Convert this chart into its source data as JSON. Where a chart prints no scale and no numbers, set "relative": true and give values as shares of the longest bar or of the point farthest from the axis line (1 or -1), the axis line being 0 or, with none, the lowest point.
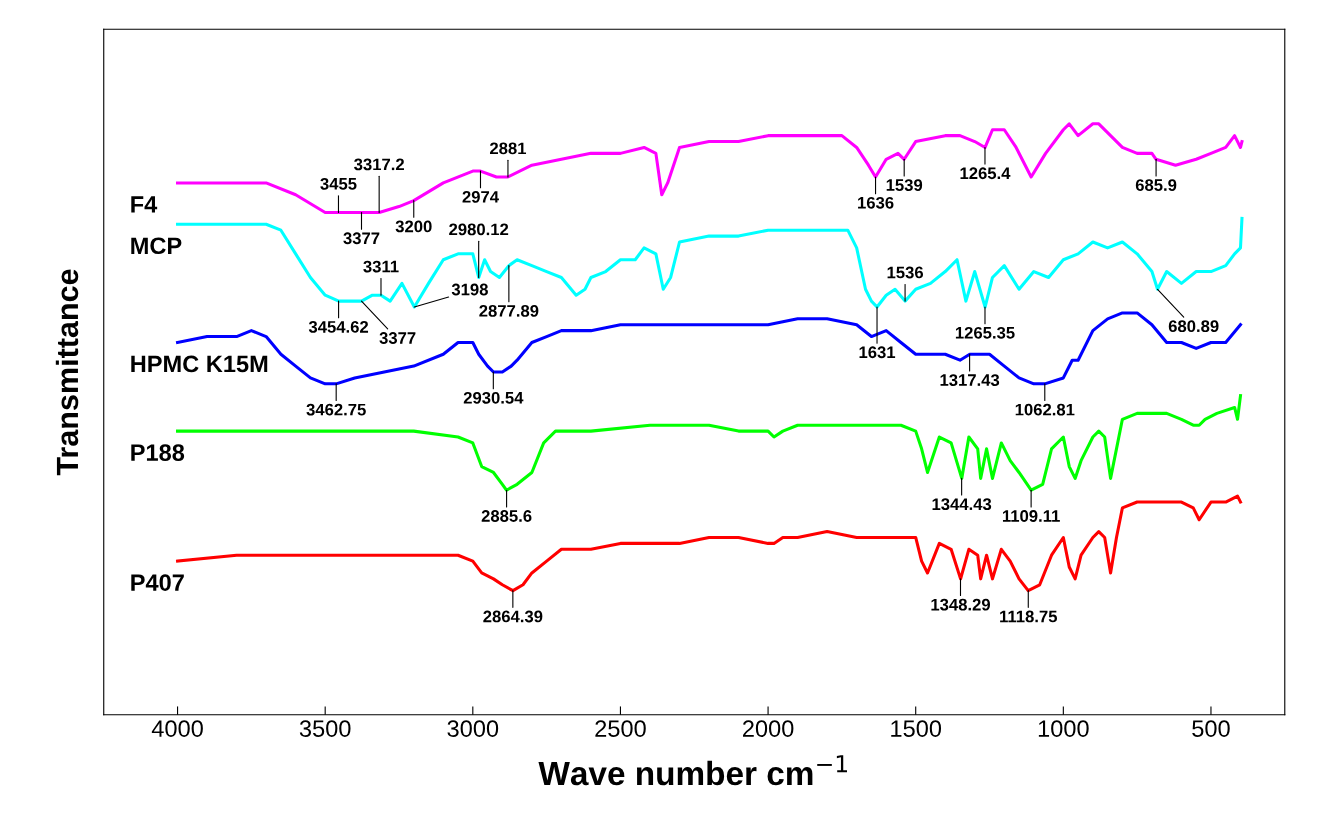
{
  "chart_data": {
    "type": "line",
    "relative": true,
    "xlabel": "Wave number cm$^{−1}$",
    "ylabel": "Transmittance",
    "xlim": [
      4250,
      250
    ],
    "xticks": [
      4000,
      3500,
      3000,
      2500,
      2000,
      1500,
      1000,
      500
    ],
    "grid": false,
    "legend": false,
    "marker": "none",
    "line_style": "solid",
    "series": [
      {
        "name": "F4",
        "color": "#ff00ff",
        "x": [
          4000,
          3900,
          3800,
          3700,
          3600,
          3500,
          3455,
          3377,
          3317,
          3250,
          3200,
          3100,
          3000,
          2974,
          2920,
          2881,
          2800,
          2700,
          2600,
          2500,
          2420,
          2380,
          2360,
          2340,
          2300,
          2200,
          2100,
          2000,
          1900,
          1800,
          1750,
          1700,
          1660,
          1636,
          1600,
          1560,
          1539,
          1500,
          1400,
          1350,
          1300,
          1265,
          1240,
          1200,
          1160,
          1109,
          1060,
          1000,
          980,
          950,
          900,
          880,
          800,
          750,
          700,
          686,
          620,
          550,
          500,
          450,
          420,
          400,
          395
        ],
        "values": [
          0.9,
          0.9,
          0.9,
          0.9,
          0.88,
          0.85,
          0.85,
          0.85,
          0.85,
          0.86,
          0.87,
          0.9,
          0.92,
          0.92,
          0.91,
          0.91,
          0.93,
          0.94,
          0.95,
          0.95,
          0.96,
          0.95,
          0.88,
          0.9,
          0.96,
          0.97,
          0.97,
          0.98,
          0.98,
          0.98,
          0.98,
          0.96,
          0.93,
          0.91,
          0.94,
          0.95,
          0.94,
          0.97,
          0.98,
          0.98,
          0.97,
          0.96,
          0.99,
          0.99,
          0.96,
          0.91,
          0.95,
          0.99,
          1.0,
          0.98,
          1.0,
          1.0,
          0.96,
          0.95,
          0.95,
          0.94,
          0.93,
          0.94,
          0.95,
          0.96,
          0.98,
          0.96,
          0.97
        ]
      },
      {
        "name": "MCP",
        "color": "#00ffff",
        "x": [
          4000,
          3900,
          3800,
          3700,
          3650,
          3600,
          3550,
          3500,
          3454,
          3420,
          3377,
          3340,
          3311,
          3280,
          3240,
          3198,
          3150,
          3100,
          3050,
          3000,
          2980,
          2960,
          2940,
          2910,
          2878,
          2850,
          2800,
          2750,
          2700,
          2650,
          2620,
          2600,
          2550,
          2500,
          2450,
          2420,
          2380,
          2355,
          2330,
          2300,
          2200,
          2100,
          2000,
          1900,
          1800,
          1730,
          1700,
          1670,
          1650,
          1631,
          1600,
          1570,
          1536,
          1500,
          1450,
          1400,
          1360,
          1330,
          1300,
          1265,
          1240,
          1200,
          1150,
          1100,
          1050,
          1000,
          950,
          900,
          850,
          800,
          750,
          700,
          681,
          650,
          600,
          550,
          500,
          450,
          420,
          400,
          395
        ],
        "values": [
          0.83,
          0.83,
          0.83,
          0.83,
          0.82,
          0.78,
          0.74,
          0.71,
          0.7,
          0.7,
          0.7,
          0.71,
          0.71,
          0.7,
          0.73,
          0.69,
          0.73,
          0.77,
          0.78,
          0.78,
          0.74,
          0.77,
          0.75,
          0.74,
          0.76,
          0.77,
          0.76,
          0.75,
          0.74,
          0.71,
          0.72,
          0.74,
          0.75,
          0.77,
          0.77,
          0.79,
          0.78,
          0.72,
          0.74,
          0.8,
          0.81,
          0.81,
          0.82,
          0.82,
          0.82,
          0.82,
          0.79,
          0.72,
          0.7,
          0.69,
          0.71,
          0.72,
          0.7,
          0.72,
          0.73,
          0.75,
          0.77,
          0.7,
          0.75,
          0.69,
          0.74,
          0.76,
          0.72,
          0.75,
          0.74,
          0.77,
          0.78,
          0.8,
          0.79,
          0.8,
          0.78,
          0.75,
          0.72,
          0.75,
          0.73,
          0.75,
          0.75,
          0.76,
          0.78,
          0.79,
          0.84
        ]
      },
      {
        "name": "HPMC K15M",
        "color": "#0000ff",
        "x": [
          4000,
          3900,
          3800,
          3750,
          3700,
          3650,
          3600,
          3550,
          3500,
          3463,
          3400,
          3300,
          3200,
          3100,
          3050,
          3000,
          2980,
          2950,
          2930,
          2900,
          2870,
          2850,
          2800,
          2750,
          2700,
          2600,
          2500,
          2400,
          2300,
          2200,
          2100,
          2000,
          1900,
          1800,
          1700,
          1650,
          1600,
          1550,
          1500,
          1470,
          1450,
          1400,
          1350,
          1317,
          1300,
          1250,
          1200,
          1150,
          1100,
          1063,
          1000,
          970,
          950,
          900,
          850,
          800,
          750,
          700,
          650,
          600,
          550,
          500,
          450,
          400
        ],
        "values": [
          0.63,
          0.64,
          0.64,
          0.65,
          0.64,
          0.61,
          0.59,
          0.57,
          0.56,
          0.56,
          0.57,
          0.58,
          0.59,
          0.61,
          0.63,
          0.63,
          0.61,
          0.59,
          0.58,
          0.58,
          0.59,
          0.6,
          0.63,
          0.64,
          0.65,
          0.65,
          0.66,
          0.66,
          0.66,
          0.66,
          0.66,
          0.66,
          0.67,
          0.67,
          0.66,
          0.64,
          0.65,
          0.63,
          0.61,
          0.61,
          0.61,
          0.61,
          0.6,
          0.61,
          0.61,
          0.61,
          0.59,
          0.57,
          0.56,
          0.56,
          0.57,
          0.6,
          0.6,
          0.65,
          0.67,
          0.68,
          0.68,
          0.66,
          0.63,
          0.63,
          0.62,
          0.63,
          0.63,
          0.66
        ]
      },
      {
        "name": "P188",
        "color": "#00ff00",
        "x": [
          4000,
          3800,
          3600,
          3400,
          3200,
          3050,
          3000,
          2970,
          2930,
          2900,
          2886,
          2850,
          2800,
          2760,
          2720,
          2600,
          2400,
          2200,
          2100,
          2000,
          1980,
          1950,
          1900,
          1800,
          1700,
          1550,
          1500,
          1480,
          1460,
          1420,
          1380,
          1344,
          1320,
          1290,
          1280,
          1260,
          1240,
          1210,
          1180,
          1150,
          1109,
          1070,
          1040,
          1000,
          980,
          960,
          940,
          900,
          880,
          860,
          840,
          820,
          800,
          750,
          700,
          650,
          600,
          560,
          540,
          520,
          480,
          420,
          410,
          400
        ],
        "values": [
          0.48,
          0.48,
          0.48,
          0.48,
          0.48,
          0.47,
          0.46,
          0.42,
          0.41,
          0.39,
          0.38,
          0.39,
          0.41,
          0.46,
          0.48,
          0.48,
          0.49,
          0.49,
          0.48,
          0.48,
          0.47,
          0.48,
          0.49,
          0.49,
          0.49,
          0.49,
          0.48,
          0.45,
          0.41,
          0.47,
          0.46,
          0.4,
          0.47,
          0.45,
          0.4,
          0.45,
          0.4,
          0.46,
          0.43,
          0.41,
          0.38,
          0.39,
          0.45,
          0.47,
          0.42,
          0.4,
          0.43,
          0.47,
          0.48,
          0.47,
          0.4,
          0.45,
          0.5,
          0.51,
          0.51,
          0.51,
          0.5,
          0.49,
          0.49,
          0.5,
          0.51,
          0.52,
          0.5,
          0.54
        ]
      },
      {
        "name": "P407",
        "color": "#ff0000",
        "x": [
          4000,
          3800,
          3600,
          3400,
          3200,
          3050,
          3000,
          2970,
          2930,
          2900,
          2864,
          2830,
          2800,
          2750,
          2700,
          2600,
          2500,
          2400,
          2300,
          2200,
          2100,
          2000,
          1980,
          1950,
          1900,
          1800,
          1700,
          1550,
          1500,
          1480,
          1460,
          1420,
          1380,
          1348,
          1320,
          1290,
          1280,
          1260,
          1240,
          1210,
          1180,
          1150,
          1119,
          1080,
          1040,
          1000,
          980,
          960,
          940,
          900,
          880,
          860,
          840,
          820,
          800,
          750,
          700,
          650,
          600,
          560,
          540,
          500,
          450,
          410,
          400
        ],
        "values": [
          0.26,
          0.27,
          0.27,
          0.27,
          0.27,
          0.27,
          0.26,
          0.24,
          0.23,
          0.22,
          0.21,
          0.22,
          0.24,
          0.26,
          0.28,
          0.28,
          0.29,
          0.29,
          0.29,
          0.3,
          0.3,
          0.29,
          0.29,
          0.3,
          0.3,
          0.31,
          0.3,
          0.3,
          0.3,
          0.26,
          0.24,
          0.29,
          0.28,
          0.23,
          0.28,
          0.27,
          0.23,
          0.27,
          0.23,
          0.28,
          0.26,
          0.23,
          0.21,
          0.22,
          0.27,
          0.3,
          0.25,
          0.23,
          0.27,
          0.3,
          0.31,
          0.3,
          0.24,
          0.3,
          0.35,
          0.36,
          0.36,
          0.36,
          0.36,
          0.35,
          0.33,
          0.36,
          0.36,
          0.37,
          0.36
        ]
      }
    ],
    "annotations": [
      {
        "text": "3377",
        "x": 3377,
        "y": 0.85
      },
      {
        "text": "3455",
        "x": 3455,
        "y": 0.85
      },
      {
        "text": "3317.2",
        "x": 3317.2,
        "y": 0.85
      },
      {
        "text": "3200",
        "x": 3200,
        "y": 0.87
      },
      {
        "text": "2974",
        "x": 2974,
        "y": 0.92
      },
      {
        "text": "2881",
        "x": 2881,
        "y": 0.91
      },
      {
        "text": "1636",
        "x": 1636,
        "y": 0.91
      },
      {
        "text": "1539",
        "x": 1539,
        "y": 0.94
      },
      {
        "text": "1265.4",
        "x": 1265.4,
        "y": 0.96
      },
      {
        "text": "685.9",
        "x": 685.9,
        "y": 0.94
      },
      {
        "text": "3454.62",
        "x": 3454.62,
        "y": 0.7
      },
      {
        "text": "3311",
        "x": 3311,
        "y": 0.71
      },
      {
        "text": "3377",
        "x": 3377,
        "y": 0.7
      },
      {
        "text": "3198",
        "x": 3198,
        "y": 0.69
      },
      {
        "text": "2980.12",
        "x": 2980.12,
        "y": 0.74
      },
      {
        "text": "2877.89",
        "x": 2877.89,
        "y": 0.76
      },
      {
        "text": "1631",
        "x": 1631,
        "y": 0.69
      },
      {
        "text": "1536",
        "x": 1536,
        "y": 0.7
      },
      {
        "text": "1265.35",
        "x": 1265.35,
        "y": 0.69
      },
      {
        "text": "680.89",
        "x": 680.89,
        "y": 0.72
      },
      {
        "text": "3462.75",
        "x": 3462.75,
        "y": 0.56
      },
      {
        "text": "2930.54",
        "x": 2930.54,
        "y": 0.58
      },
      {
        "text": "1317.43",
        "x": 1317.43,
        "y": 0.61
      },
      {
        "text": "1062.81",
        "x": 1062.81,
        "y": 0.56
      },
      {
        "text": "2885.6",
        "x": 2885.6,
        "y": 0.38
      },
      {
        "text": "1344.43",
        "x": 1344.43,
        "y": 0.4
      },
      {
        "text": "1109.11",
        "x": 1109.11,
        "y": 0.38
      },
      {
        "text": "2864.39",
        "x": 2864.39,
        "y": 0.21
      },
      {
        "text": "1348.29",
        "x": 1348.29,
        "y": 0.23
      },
      {
        "text": "1118.75",
        "x": 1118.75,
        "y": 0.21
      }
    ]
  }
}
